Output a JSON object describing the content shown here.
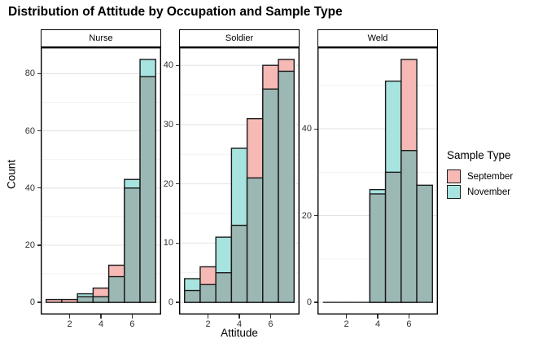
{
  "title": "Distribution of Attitude by Occupation and Sample Type",
  "axes": {
    "x_label": "Attitude",
    "y_label": "Count"
  },
  "legend": {
    "title": "Sample Type",
    "items": [
      {
        "label": "September",
        "color": "#F6B9B6"
      },
      {
        "label": "November",
        "color": "#A7E4E0"
      }
    ]
  },
  "colors": {
    "september": "#F6B9B6",
    "november": "#A7E4E0",
    "overlap": "#9CB8B4",
    "bar_stroke": "#1A1A1A",
    "grid_major": "#E4E4E4",
    "grid_minor": "#F1F1F1",
    "panel_border": "#000000",
    "strip_background": "#FFFFFF",
    "tick_text": "#303030"
  },
  "chart_data": {
    "type": "histogram",
    "title": "Distribution of Attitude by Occupation and Sample Type",
    "xlabel": "Attitude",
    "ylabel": "Count",
    "legend_title": "Sample Type",
    "legend_position": "right",
    "grid": true,
    "x": [
      1,
      2,
      3,
      4,
      5,
      6,
      7
    ],
    "x_ticks": [
      2,
      4,
      6
    ],
    "xlim": [
      0.15,
      7.85
    ],
    "facets": [
      {
        "name": "Nurse",
        "y_ticks": [
          0,
          20,
          40,
          60,
          80
        ],
        "ylim": [
          -4.25,
          89.25
        ],
        "series": [
          {
            "name": "September",
            "values": [
              1,
              1,
              2,
              5,
              13,
              40,
              79
            ]
          },
          {
            "name": "November",
            "values": [
              0,
              0,
              3,
              2,
              9,
              43,
              85
            ]
          }
        ]
      },
      {
        "name": "Soldier",
        "y_ticks": [
          0,
          10,
          20,
          30,
          40
        ],
        "ylim": [
          -2.05,
          43.05
        ],
        "series": [
          {
            "name": "September",
            "values": [
              2,
              6,
              5,
              13,
              31,
              40,
              41
            ]
          },
          {
            "name": "November",
            "values": [
              4,
              3,
              11,
              26,
              21,
              36,
              39
            ]
          }
        ]
      },
      {
        "name": "Weld",
        "y_ticks": [
          0,
          20,
          40
        ],
        "ylim": [
          -2.8,
          58.8
        ],
        "series": [
          {
            "name": "September",
            "values": [
              0,
              0,
              0,
              25,
              30,
              56,
              27
            ]
          },
          {
            "name": "November",
            "values": [
              0,
              0,
              0,
              26,
              51,
              35,
              27
            ]
          }
        ]
      }
    ]
  }
}
